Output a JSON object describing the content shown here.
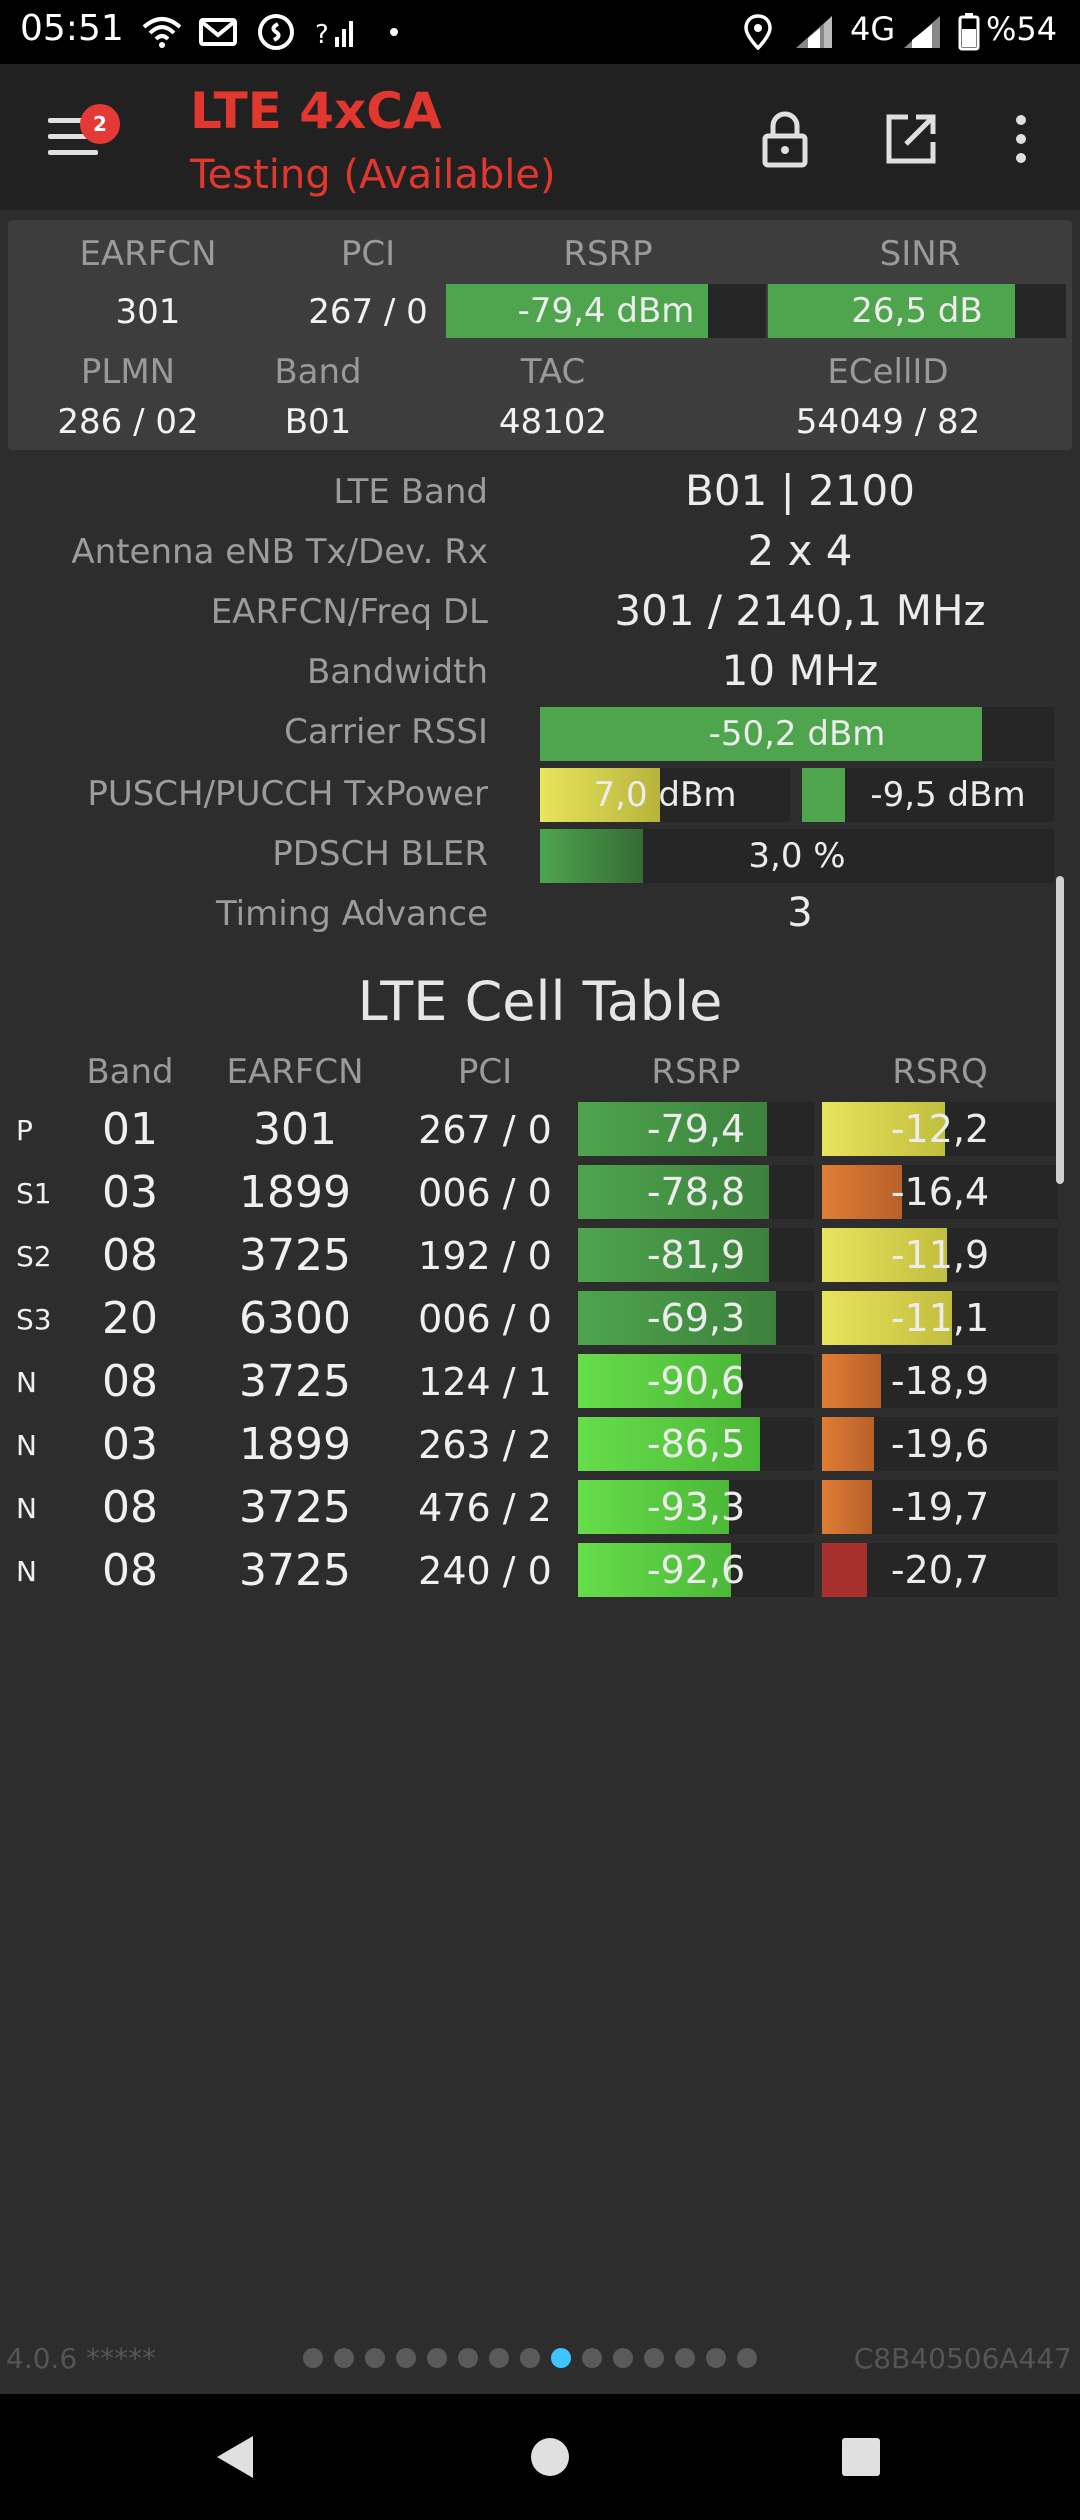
{
  "status_bar": {
    "time": "05:51",
    "network_type": "4G",
    "battery": "%54",
    "icons": [
      "wifi-icon",
      "gmail-icon",
      "shazam-icon",
      "question-signal-icon",
      "dot-icon",
      "location-icon",
      "signal-icon",
      "signal-icon",
      "battery-icon"
    ]
  },
  "app_bar": {
    "badge_count": "2",
    "title": "LTE 4xCA",
    "subtitle": "Testing (Available)",
    "title_color": "#e0382e",
    "icons": [
      "menu-icon",
      "lock-icon",
      "open-external-icon",
      "more-vert-icon"
    ]
  },
  "summary": {
    "labels": {
      "earfcn": "EARFCN",
      "pci": "PCI",
      "rsrp": "RSRP",
      "sinr": "SINR",
      "plmn": "PLMN",
      "band": "Band",
      "tac": "TAC",
      "ecellid": "ECellID"
    },
    "earfcn": "301",
    "pci": "267 / 0",
    "rsrp": {
      "text": "-79,4 dBm",
      "fill_percent": 82
    },
    "sinr": {
      "text": "26,5 dB",
      "fill_percent": 83
    },
    "plmn": "286 / 02",
    "band": "B01",
    "tac": "48102",
    "ecellid": "54049 / 82"
  },
  "details": {
    "lte_band": {
      "label": "LTE Band",
      "value": "B01 | 2100"
    },
    "antenna": {
      "label": "Antenna eNB Tx/Dev. Rx",
      "value": "2 x 4"
    },
    "earfcn_freq": {
      "label": "EARFCN/Freq DL",
      "value": "301 / 2140,1 MHz"
    },
    "bandwidth": {
      "label": "Bandwidth",
      "value": "10 MHz"
    },
    "carrier_rssi": {
      "label": "Carrier RSSI",
      "value": "-50,2 dBm",
      "fill_percent": 86
    },
    "txpower": {
      "label": "PUSCH/PUCCH TxPower",
      "pusch": "7,0 dBm",
      "pusch_fill_percent": 48,
      "pucch": "-9,5 dBm",
      "pucch_fill_percent": 17
    },
    "bler": {
      "label": "PDSCH BLER",
      "value": "3,0 %",
      "fill_percent": 20
    },
    "timing_advance": {
      "label": "Timing Advance",
      "value": "3"
    }
  },
  "cell_table": {
    "title": "LTE Cell Table",
    "headers": {
      "band": "Band",
      "earfcn": "EARFCN",
      "pci": "PCI",
      "rsrp": "RSRP",
      "rsrq": "RSRQ"
    },
    "rows": [
      {
        "type": "P",
        "band": "01",
        "earfcn": "301",
        "pci": "267 / 0",
        "rsrp": "-79,4",
        "rsrp_fill": 80,
        "rsrq": "-12,2",
        "rsrq_fill": 52,
        "rsrp_color": "dark",
        "rsrq_color": "yellow"
      },
      {
        "type": "S1",
        "band": "03",
        "earfcn": "1899",
        "pci": "006 / 0",
        "rsrp": "-78,8",
        "rsrp_fill": 81,
        "rsrq": "-16,4",
        "rsrq_fill": 34,
        "rsrp_color": "dark",
        "rsrq_color": "orange"
      },
      {
        "type": "S2",
        "band": "08",
        "earfcn": "3725",
        "pci": "192 / 0",
        "rsrp": "-81,9",
        "rsrp_fill": 81,
        "rsrq": "-11,9",
        "rsrq_fill": 53,
        "rsrp_color": "dark",
        "rsrq_color": "yellow"
      },
      {
        "type": "S3",
        "band": "20",
        "earfcn": "6300",
        "pci": "006 / 0",
        "rsrp": "-69,3",
        "rsrp_fill": 84,
        "rsrq": "-11,1",
        "rsrq_fill": 55,
        "rsrp_color": "dark",
        "rsrq_color": "yellow"
      },
      {
        "type": "N",
        "band": "08",
        "earfcn": "3725",
        "pci": "124 / 1",
        "rsrp": "-90,6",
        "rsrp_fill": 69,
        "rsrq": "-18,9",
        "rsrq_fill": 25,
        "rsrp_color": "bright",
        "rsrq_color": "orange"
      },
      {
        "type": "N",
        "band": "03",
        "earfcn": "1899",
        "pci": "263 / 2",
        "rsrp": "-86,5",
        "rsrp_fill": 77,
        "rsrq": "-19,6",
        "rsrq_fill": 22,
        "rsrp_color": "bright",
        "rsrq_color": "orange"
      },
      {
        "type": "N",
        "band": "08",
        "earfcn": "3725",
        "pci": "476 / 2",
        "rsrp": "-93,3",
        "rsrp_fill": 64,
        "rsrq": "-19,7",
        "rsrq_fill": 21,
        "rsrp_color": "bright",
        "rsrq_color": "orange"
      },
      {
        "type": "N",
        "band": "08",
        "earfcn": "3725",
        "pci": "240 / 0",
        "rsrp": "-92,6",
        "rsrp_fill": 65,
        "rsrq": "-20,7",
        "rsrq_fill": 19,
        "rsrp_color": "bright",
        "rsrq_color": "red"
      }
    ]
  },
  "footer": {
    "version": "4.0.6 *****",
    "device_id": "C8B40506A447",
    "page_count": 15,
    "active_page": 8
  },
  "nav_bar": {
    "icons": [
      "back-icon",
      "home-icon",
      "recents-icon"
    ]
  },
  "colors": {
    "bar_green_dark": "#4ea54e",
    "bar_green_bright": "#66dd4a",
    "bar_yellow": "#e8e45c",
    "bar_orange": "#e07d34",
    "bar_red": "#a8302c",
    "accent_blue": "#40c4ff"
  }
}
